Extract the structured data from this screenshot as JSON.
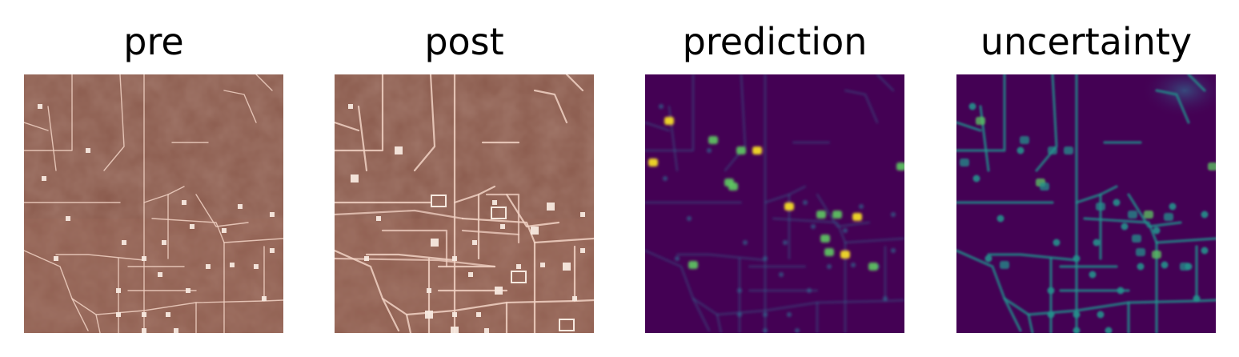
{
  "panels": [
    {
      "title": "pre",
      "kind": "satellite-pre"
    },
    {
      "title": "post",
      "kind": "satellite-post"
    },
    {
      "title": "prediction",
      "kind": "heatmap-prediction"
    },
    {
      "title": "uncertainty",
      "kind": "heatmap-uncertainty"
    }
  ],
  "colors": {
    "soil": "#8a5a4c",
    "soil_light": "#a06a5a",
    "road": "#f1d2c4",
    "pad": "#f7e9df",
    "viridis_low": "#440154",
    "viridis_mid_blue": "#31688e",
    "viridis_teal": "#21918c",
    "viridis_green": "#5ec962",
    "viridis_yellow": "#fde725"
  }
}
